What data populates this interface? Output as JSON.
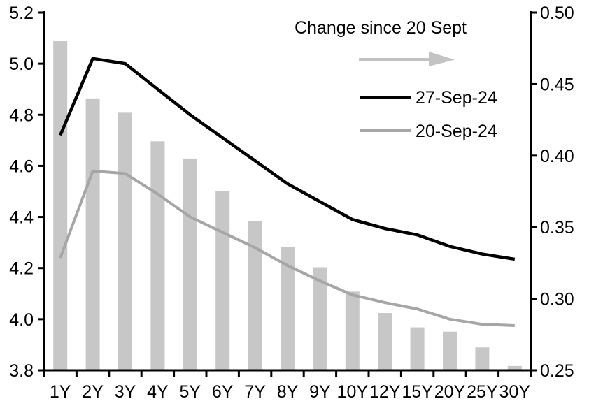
{
  "chart_data": {
    "type": "combo",
    "categories": [
      "1Y",
      "2Y",
      "3Y",
      "4Y",
      "5Y",
      "6Y",
      "7Y",
      "8Y",
      "9Y",
      "10Y",
      "12Y",
      "15Y",
      "20Y",
      "25Y",
      "30Y"
    ],
    "series": [
      {
        "name": "Change since 20 Sept",
        "type": "bar",
        "axis": "right",
        "color": "#c7c7c7",
        "values": [
          0.48,
          0.44,
          0.43,
          0.41,
          0.398,
          0.375,
          0.354,
          0.336,
          0.322,
          0.305,
          0.29,
          0.28,
          0.277,
          0.266,
          0.253
        ]
      },
      {
        "name": "27-Sep-24",
        "type": "line",
        "axis": "left",
        "color": "#000000",
        "values": [
          4.72,
          5.02,
          5.0,
          4.9,
          4.8,
          4.71,
          4.62,
          4.53,
          4.46,
          4.39,
          4.355,
          4.33,
          4.285,
          4.255,
          4.235
        ]
      },
      {
        "name": "20-Sep-24",
        "type": "line",
        "axis": "left",
        "color": "#a6a6a6",
        "values": [
          4.24,
          4.58,
          4.57,
          4.49,
          4.4,
          4.34,
          4.28,
          4.21,
          4.15,
          4.095,
          4.065,
          4.04,
          4.0,
          3.98,
          3.975
        ]
      }
    ],
    "left_axis": {
      "min": 3.8,
      "max": 5.2,
      "step": 0.2,
      "tick_labels": [
        "5.2",
        "5.0",
        "4.8",
        "4.6",
        "4.4",
        "4.2",
        "4.0",
        "3.8"
      ]
    },
    "right_axis": {
      "min": 0.25,
      "max": 0.5,
      "step": 0.05,
      "tick_labels": [
        "0.50",
        "0.45",
        "0.40",
        "0.35",
        "0.30",
        "0.25"
      ]
    },
    "grid": false,
    "legend_position": "top-center-inside",
    "legend": {
      "title": "Change since 20 Sept",
      "arrow_icon": "right-arrow",
      "arrow_color": "#c3c3c3",
      "items": [
        {
          "label": "27-Sep-24",
          "color": "#000000"
        },
        {
          "label": "20-Sep-24",
          "color": "#a6a6a6"
        }
      ]
    }
  }
}
